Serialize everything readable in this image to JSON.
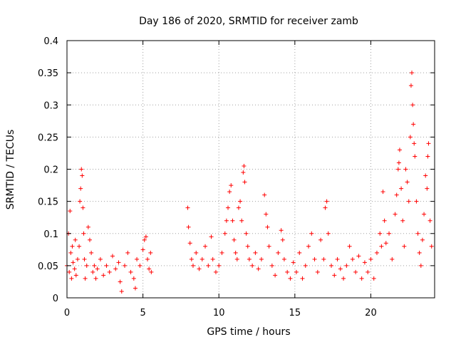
{
  "chart_data": {
    "type": "scatter",
    "title": "Day 186 of 2020, SRMTID for receiver zamb",
    "xlabel": "GPS time / hours",
    "ylabel": "SRMTID / TECUs",
    "xlim": [
      0,
      24.2
    ],
    "ylim": [
      0,
      0.4
    ],
    "xticks": [
      0,
      5,
      10,
      15,
      20
    ],
    "xtick_labels": [
      "0",
      "5",
      "10",
      "15",
      "20"
    ],
    "yticks": [
      0,
      0.05,
      0.1,
      0.15,
      0.2,
      0.25,
      0.3,
      0.35,
      0.4
    ],
    "ytick_labels": [
      "0",
      "0.05",
      "0.1",
      "0.15",
      "0.2",
      "0.25",
      "0.3",
      "0.35",
      "0.4"
    ],
    "grid": true,
    "marker": "+",
    "color": "#ff0000",
    "series": [
      {
        "name": "SRMTID",
        "points": [
          [
            0.0,
            0.05
          ],
          [
            0.1,
            0.1
          ],
          [
            0.15,
            0.04
          ],
          [
            0.2,
            0.135
          ],
          [
            0.25,
            0.07
          ],
          [
            0.3,
            0.03
          ],
          [
            0.35,
            0.08
          ],
          [
            0.4,
            0.055
          ],
          [
            0.5,
            0.045
          ],
          [
            0.55,
            0.09
          ],
          [
            0.6,
            0.035
          ],
          [
            0.7,
            0.06
          ],
          [
            0.8,
            0.08
          ],
          [
            0.85,
            0.15
          ],
          [
            0.9,
            0.17
          ],
          [
            0.95,
            0.2
          ],
          [
            1.0,
            0.19
          ],
          [
            1.05,
            0.14
          ],
          [
            1.1,
            0.1
          ],
          [
            1.15,
            0.06
          ],
          [
            1.2,
            0.03
          ],
          [
            1.3,
            0.05
          ],
          [
            1.4,
            0.11
          ],
          [
            1.5,
            0.09
          ],
          [
            1.6,
            0.07
          ],
          [
            1.7,
            0.04
          ],
          [
            1.8,
            0.05
          ],
          [
            1.9,
            0.03
          ],
          [
            2.0,
            0.045
          ],
          [
            2.2,
            0.06
          ],
          [
            2.4,
            0.035
          ],
          [
            2.6,
            0.05
          ],
          [
            2.8,
            0.04
          ],
          [
            3.0,
            0.065
          ],
          [
            3.2,
            0.045
          ],
          [
            3.4,
            0.055
          ],
          [
            3.5,
            0.025
          ],
          [
            3.6,
            0.01
          ],
          [
            3.8,
            0.05
          ],
          [
            4.0,
            0.07
          ],
          [
            4.2,
            0.04
          ],
          [
            4.4,
            0.03
          ],
          [
            4.5,
            0.015
          ],
          [
            4.6,
            0.06
          ],
          [
            4.8,
            0.05
          ],
          [
            5.0,
            0.075
          ],
          [
            5.1,
            0.09
          ],
          [
            5.2,
            0.095
          ],
          [
            5.3,
            0.06
          ],
          [
            5.4,
            0.045
          ],
          [
            5.5,
            0.07
          ],
          [
            5.55,
            0.04
          ],
          [
            7.95,
            0.14
          ],
          [
            8.0,
            0.11
          ],
          [
            8.1,
            0.085
          ],
          [
            8.2,
            0.06
          ],
          [
            8.3,
            0.05
          ],
          [
            8.5,
            0.07
          ],
          [
            8.7,
            0.045
          ],
          [
            8.9,
            0.06
          ],
          [
            9.1,
            0.08
          ],
          [
            9.3,
            0.05
          ],
          [
            9.5,
            0.095
          ],
          [
            9.6,
            0.06
          ],
          [
            9.8,
            0.04
          ],
          [
            10.0,
            0.05
          ],
          [
            10.2,
            0.07
          ],
          [
            10.4,
            0.1
          ],
          [
            10.5,
            0.12
          ],
          [
            10.6,
            0.14
          ],
          [
            10.7,
            0.165
          ],
          [
            10.8,
            0.175
          ],
          [
            10.9,
            0.12
          ],
          [
            11.0,
            0.09
          ],
          [
            11.1,
            0.07
          ],
          [
            11.2,
            0.06
          ],
          [
            11.3,
            0.14
          ],
          [
            11.4,
            0.15
          ],
          [
            11.5,
            0.12
          ],
          [
            11.6,
            0.195
          ],
          [
            11.65,
            0.205
          ],
          [
            11.7,
            0.18
          ],
          [
            11.8,
            0.1
          ],
          [
            11.9,
            0.08
          ],
          [
            12.0,
            0.06
          ],
          [
            12.2,
            0.05
          ],
          [
            12.4,
            0.07
          ],
          [
            12.6,
            0.045
          ],
          [
            12.8,
            0.06
          ],
          [
            13.0,
            0.16
          ],
          [
            13.1,
            0.13
          ],
          [
            13.2,
            0.11
          ],
          [
            13.3,
            0.08
          ],
          [
            13.5,
            0.05
          ],
          [
            13.7,
            0.035
          ],
          [
            13.9,
            0.07
          ],
          [
            14.1,
            0.105
          ],
          [
            14.2,
            0.09
          ],
          [
            14.3,
            0.06
          ],
          [
            14.5,
            0.04
          ],
          [
            14.7,
            0.03
          ],
          [
            14.9,
            0.055
          ],
          [
            15.1,
            0.04
          ],
          [
            15.3,
            0.07
          ],
          [
            15.5,
            0.03
          ],
          [
            15.7,
            0.05
          ],
          [
            15.9,
            0.08
          ],
          [
            16.1,
            0.1
          ],
          [
            16.3,
            0.06
          ],
          [
            16.5,
            0.04
          ],
          [
            16.7,
            0.09
          ],
          [
            16.9,
            0.06
          ],
          [
            17.0,
            0.14
          ],
          [
            17.1,
            0.15
          ],
          [
            17.2,
            0.1
          ],
          [
            17.4,
            0.05
          ],
          [
            17.6,
            0.035
          ],
          [
            17.8,
            0.06
          ],
          [
            18.0,
            0.045
          ],
          [
            18.2,
            0.03
          ],
          [
            18.4,
            0.05
          ],
          [
            18.6,
            0.08
          ],
          [
            18.8,
            0.06
          ],
          [
            19.0,
            0.04
          ],
          [
            19.2,
            0.065
          ],
          [
            19.4,
            0.03
          ],
          [
            19.6,
            0.055
          ],
          [
            19.8,
            0.04
          ],
          [
            20.0,
            0.06
          ],
          [
            20.2,
            0.03
          ],
          [
            20.4,
            0.07
          ],
          [
            20.6,
            0.1
          ],
          [
            20.7,
            0.08
          ],
          [
            20.8,
            0.165
          ],
          [
            20.9,
            0.12
          ],
          [
            21.0,
            0.085
          ],
          [
            21.2,
            0.1
          ],
          [
            21.4,
            0.06
          ],
          [
            21.6,
            0.13
          ],
          [
            21.7,
            0.16
          ],
          [
            21.8,
            0.2
          ],
          [
            21.85,
            0.21
          ],
          [
            21.9,
            0.23
          ],
          [
            22.0,
            0.17
          ],
          [
            22.1,
            0.12
          ],
          [
            22.2,
            0.08
          ],
          [
            22.3,
            0.2
          ],
          [
            22.4,
            0.18
          ],
          [
            22.5,
            0.15
          ],
          [
            22.6,
            0.25
          ],
          [
            22.65,
            0.33
          ],
          [
            22.7,
            0.35
          ],
          [
            22.75,
            0.3
          ],
          [
            22.8,
            0.27
          ],
          [
            22.85,
            0.24
          ],
          [
            22.9,
            0.22
          ],
          [
            23.0,
            0.15
          ],
          [
            23.1,
            0.1
          ],
          [
            23.2,
            0.07
          ],
          [
            23.3,
            0.05
          ],
          [
            23.4,
            0.09
          ],
          [
            23.5,
            0.13
          ],
          [
            23.6,
            0.19
          ],
          [
            23.7,
            0.17
          ],
          [
            23.75,
            0.22
          ],
          [
            23.8,
            0.24
          ],
          [
            23.9,
            0.12
          ],
          [
            24.0,
            0.08
          ]
        ]
      }
    ]
  }
}
